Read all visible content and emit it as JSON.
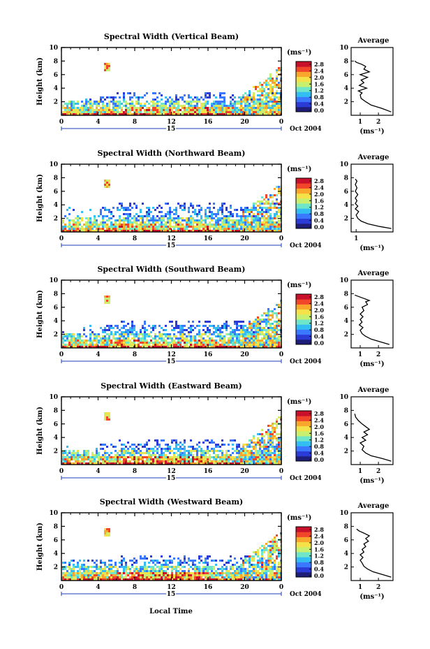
{
  "figure": {
    "shared_x_label": "Local Time",
    "date_label": "Oct 2004",
    "day_label": "15",
    "ylabel": "Height (km)",
    "units_label": "(ms⁻¹)",
    "avg_title": "Average",
    "avg_xlabel": "(ms⁻¹)",
    "colorbar_ticks": [
      "2.8",
      "2.4",
      "2.0",
      "1.6",
      "1.2",
      "0.8",
      "0.4",
      "0.0"
    ],
    "colors": [
      "#1e1e78",
      "#2b3cd6",
      "#3a78ff",
      "#33bdf2",
      "#6fe6c8",
      "#c8f06e",
      "#f5e14a",
      "#f9a72c",
      "#f2462a",
      "#c8102a"
    ]
  },
  "chart_data": [
    {
      "type": "heatmap",
      "title": "Spectral Width (Vertical Beam)",
      "xlabel": "Local Time",
      "ylabel": "Height (km)",
      "x_ticks": [
        "0",
        "4",
        "8",
        "12",
        "16",
        "20",
        "0"
      ],
      "xlim": [
        0,
        24
      ],
      "y_ticks": [
        "2",
        "4",
        "6",
        "8",
        "10"
      ],
      "ylim": [
        0,
        10
      ],
      "colorbar": {
        "label": "(ms⁻¹)",
        "range": [
          0.0,
          3.0
        ],
        "ticks": [
          "2.8",
          "2.4",
          "2.0",
          "1.6",
          "1.2",
          "0.8",
          "0.4",
          "0.0"
        ]
      },
      "average_profile": {
        "type": "line",
        "title": "Average",
        "xlabel": "(ms⁻¹)",
        "x_ticks": [
          "1",
          "2"
        ],
        "xlim": [
          0.5,
          2.8
        ],
        "y_ticks": [
          "2",
          "4",
          "6",
          "8",
          "10"
        ],
        "ylim": [
          0,
          10
        ],
        "x": [
          2.7,
          2.2,
          1.6,
          1.3,
          1.05,
          1.0,
          1.1,
          0.9,
          1.35,
          0.95,
          1.2,
          1.05,
          1.4,
          1.0,
          1.5,
          1.2,
          1.3,
          1.1,
          0.8,
          0.7
        ],
        "y": [
          0.5,
          1.0,
          1.5,
          2.0,
          2.5,
          3.0,
          3.3,
          3.6,
          4.0,
          4.4,
          4.8,
          5.2,
          5.6,
          6.0,
          6.4,
          6.8,
          7.2,
          7.5,
          7.8,
          8.0
        ]
      }
    },
    {
      "type": "heatmap",
      "title": "Spectral Width (Northward Beam)",
      "xlabel": "Local Time",
      "ylabel": "Height (km)",
      "x_ticks": [
        "0",
        "4",
        "8",
        "12",
        "16",
        "20",
        "0"
      ],
      "xlim": [
        0,
        24
      ],
      "y_ticks": [
        "2",
        "4",
        "6",
        "8",
        "10"
      ],
      "ylim": [
        0,
        10
      ],
      "colorbar": {
        "label": "(ms⁻¹)",
        "range": [
          0.0,
          3.0
        ],
        "ticks": [
          "2.8",
          "2.4",
          "2.0",
          "1.6",
          "1.2",
          "0.8",
          "0.4",
          "0.0"
        ]
      },
      "average_profile": {
        "type": "line",
        "title": "Average",
        "xlabel": "(ms⁻¹)",
        "x_ticks": [
          "1"
        ],
        "xlim": [
          0.7,
          3.2
        ],
        "y_ticks": [
          "2",
          "4",
          "6",
          "8",
          "10"
        ],
        "ylim": [
          0,
          10
        ],
        "x": [
          3.1,
          2.4,
          1.7,
          1.3,
          1.1,
          1.0,
          1.15,
          0.95,
          1.1,
          0.95,
          1.05,
          0.95,
          1.1,
          0.95,
          1.05,
          0.95,
          1.05,
          0.95
        ],
        "y": [
          0.5,
          0.8,
          1.2,
          1.6,
          2.0,
          2.5,
          3.0,
          3.4,
          3.8,
          4.2,
          4.6,
          5.0,
          5.5,
          6.0,
          6.5,
          7.0,
          7.5,
          7.8
        ]
      }
    },
    {
      "type": "heatmap",
      "title": "Spectral Width (Southward Beam)",
      "xlabel": "Local Time",
      "ylabel": "Height (km)",
      "x_ticks": [
        "0",
        "4",
        "8",
        "12",
        "16",
        "20",
        "0"
      ],
      "xlim": [
        0,
        24
      ],
      "y_ticks": [
        "2",
        "4",
        "6",
        "8",
        "10"
      ],
      "ylim": [
        0,
        10
      ],
      "colorbar": {
        "label": "(ms⁻¹)",
        "range": [
          0.0,
          3.0
        ],
        "ticks": [
          "2.8",
          "2.4",
          "2.0",
          "1.6",
          "1.2",
          "0.8",
          "0.4",
          "0.0"
        ]
      },
      "average_profile": {
        "type": "line",
        "title": "Average",
        "xlabel": "(ms⁻¹)",
        "x_ticks": [
          "1",
          "2"
        ],
        "xlim": [
          0.5,
          2.8
        ],
        "y_ticks": [
          "2",
          "4",
          "6",
          "8",
          "10"
        ],
        "ylim": [
          0,
          10
        ],
        "x": [
          2.6,
          2.1,
          1.6,
          1.3,
          1.1,
          1.0,
          1.15,
          0.95,
          1.1,
          1.0,
          1.15,
          1.0,
          1.2,
          1.1,
          1.4,
          1.3,
          1.5,
          1.2,
          0.9,
          0.7
        ],
        "y": [
          0.5,
          0.9,
          1.3,
          1.7,
          2.1,
          2.6,
          3.0,
          3.4,
          3.8,
          4.2,
          4.6,
          5.0,
          5.5,
          6.0,
          6.4,
          6.8,
          7.0,
          7.3,
          7.6,
          7.8
        ]
      }
    },
    {
      "type": "heatmap",
      "title": "Spectral Width (Eastward Beam)",
      "xlabel": "Local Time",
      "ylabel": "Height (km)",
      "x_ticks": [
        "0",
        "4",
        "8",
        "12",
        "16",
        "20",
        "0"
      ],
      "xlim": [
        0,
        24
      ],
      "y_ticks": [
        "2",
        "4",
        "6",
        "8",
        "10"
      ],
      "ylim": [
        0,
        10
      ],
      "colorbar": {
        "label": "(ms⁻¹)",
        "range": [
          0.0,
          3.0
        ],
        "ticks": [
          "2.8",
          "2.4",
          "2.0",
          "1.6",
          "1.2",
          "0.8",
          "0.4",
          "0.0"
        ]
      },
      "average_profile": {
        "type": "line",
        "title": "Average",
        "xlabel": "(ms⁻¹)",
        "x_ticks": [
          "1",
          "2"
        ],
        "xlim": [
          0.5,
          2.8
        ],
        "y_ticks": [
          "2",
          "4",
          "6",
          "8",
          "10"
        ],
        "ylim": [
          0,
          10
        ],
        "x": [
          2.7,
          2.2,
          1.6,
          1.3,
          1.1,
          1.2,
          1.0,
          1.3,
          1.1,
          1.4,
          1.2,
          1.5,
          1.3,
          1.1,
          0.9,
          0.75,
          0.7
        ],
        "y": [
          0.5,
          0.9,
          1.3,
          1.7,
          2.2,
          2.7,
          3.2,
          3.6,
          4.0,
          4.4,
          4.8,
          5.2,
          5.6,
          6.0,
          6.5,
          7.0,
          7.5
        ]
      }
    },
    {
      "type": "heatmap",
      "title": "Spectral Width (Westward Beam)",
      "xlabel": "Local Time",
      "ylabel": "Height (km)",
      "x_ticks": [
        "0",
        "4",
        "8",
        "12",
        "16",
        "20",
        "0"
      ],
      "xlim": [
        0,
        24
      ],
      "y_ticks": [
        "2",
        "4",
        "6",
        "8",
        "10"
      ],
      "ylim": [
        0,
        10
      ],
      "colorbar": {
        "label": "(ms⁻¹)",
        "range": [
          0.0,
          3.0
        ],
        "ticks": [
          "2.8",
          "2.4",
          "2.0",
          "1.6",
          "1.2",
          "0.8",
          "0.4",
          "0.0"
        ]
      },
      "average_profile": {
        "type": "line",
        "title": "Average",
        "xlabel": "(ms⁻¹)",
        "x_ticks": [
          "1",
          "2"
        ],
        "xlim": [
          0.5,
          2.8
        ],
        "y_ticks": [
          "2",
          "4",
          "6",
          "8",
          "10"
        ],
        "ylim": [
          0,
          10
        ],
        "x": [
          2.7,
          2.2,
          1.7,
          1.4,
          1.2,
          1.1,
          1.0,
          1.15,
          1.0,
          1.2,
          1.1,
          1.3,
          1.2,
          1.45,
          1.3,
          1.5,
          1.2,
          0.95,
          0.8
        ],
        "y": [
          0.5,
          0.9,
          1.3,
          1.7,
          2.1,
          2.6,
          3.0,
          3.4,
          3.8,
          4.2,
          4.6,
          5.0,
          5.4,
          5.8,
          6.2,
          6.6,
          7.0,
          7.3,
          7.6
        ]
      }
    }
  ]
}
